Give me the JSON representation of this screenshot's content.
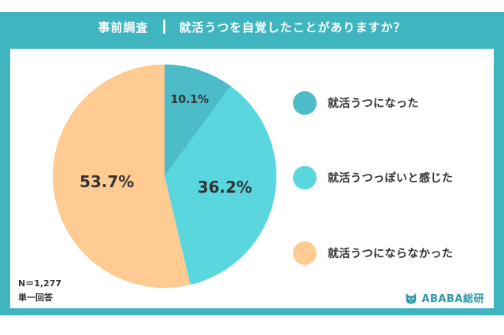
{
  "header": {
    "left": "事前調査",
    "question": "就活うつを自覚したことがありますか？"
  },
  "chart_data": {
    "type": "pie",
    "start_angle_deg": 0,
    "direction": "clockwise",
    "slices": [
      {
        "label": "就活うつになった",
        "value": 10.1,
        "display": "10.1%",
        "color": "#4bbcc8"
      },
      {
        "label": "就活うつっぽいと感じた",
        "value": 36.2,
        "display": "36.2%",
        "color": "#5ad7de"
      },
      {
        "label": "就活うつにならなかった",
        "value": 53.7,
        "display": "53.7%",
        "color": "#fecb92"
      }
    ]
  },
  "notes": {
    "n": "N＝1,277",
    "answer_type": "単一回答"
  },
  "brand": {
    "name": "ABABA総研"
  }
}
